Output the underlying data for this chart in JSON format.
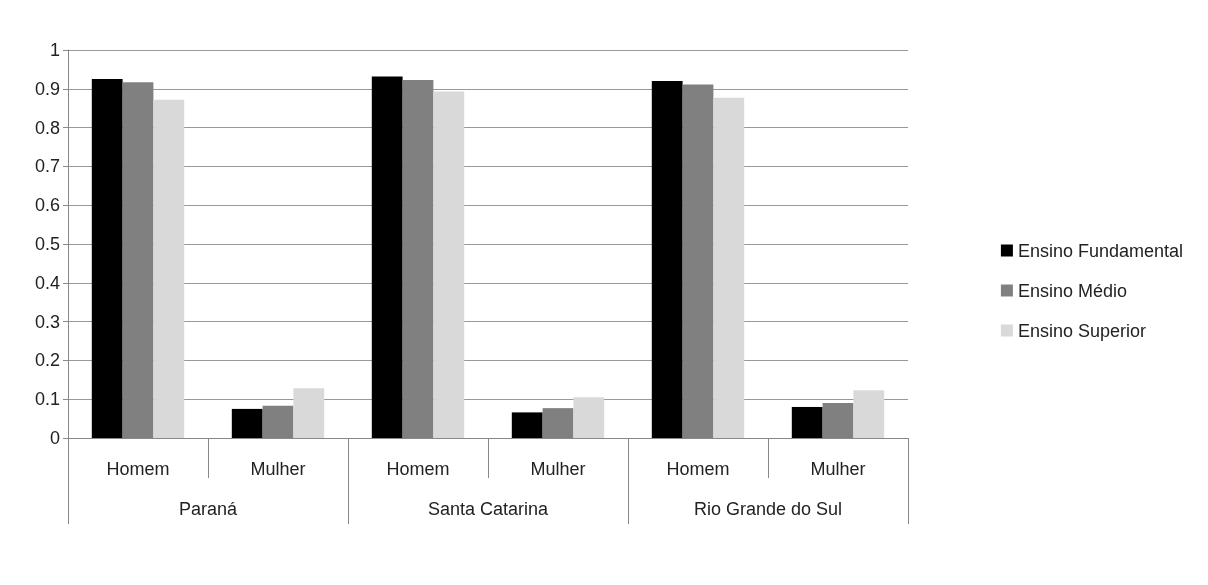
{
  "chart_data": {
    "type": "bar",
    "categories": [
      "Homem",
      "Mulher",
      "Homem",
      "Mulher",
      "Homem",
      "Mulher"
    ],
    "annotations": [
      "Paraná",
      "Santa Catarina",
      "Rio Grande do Sul"
    ],
    "series": [
      {
        "name": "Ensino Fundamental",
        "color": "#000000",
        "values": [
          0.925,
          0.075,
          0.932,
          0.066,
          0.92,
          0.08
        ]
      },
      {
        "name": "Ensino Médio",
        "color": "#808080",
        "values": [
          0.917,
          0.083,
          0.923,
          0.077,
          0.911,
          0.09
        ]
      },
      {
        "name": "Ensino Superior",
        "color": "#d9d9d9",
        "values": [
          0.872,
          0.128,
          0.893,
          0.105,
          0.877,
          0.123
        ]
      }
    ],
    "ylim": [
      0,
      1
    ],
    "yticks": [
      0,
      0.1,
      0.2,
      0.3,
      0.4,
      0.5,
      0.6,
      0.7,
      0.8,
      0.9,
      1
    ],
    "grid": "y",
    "legend": "right"
  }
}
